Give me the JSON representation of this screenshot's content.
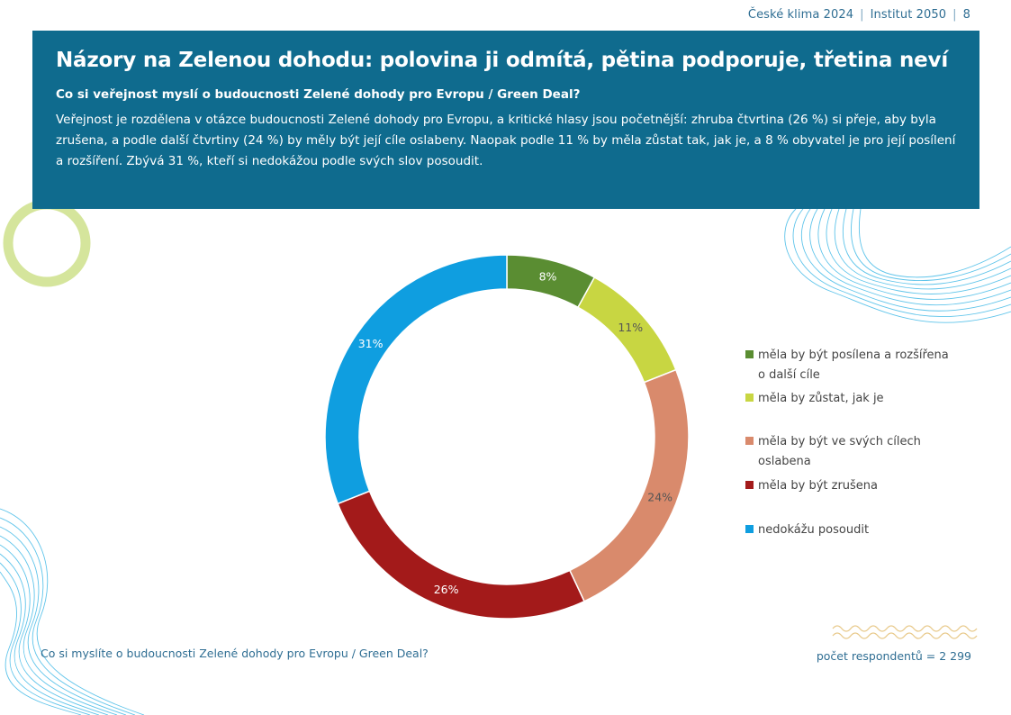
{
  "header": {
    "report": "České klima 2024",
    "publisher": "Institut 2050",
    "page_number": "8"
  },
  "banner": {
    "title": "Názory na Zelenou dohodu: polovina ji odmítá, pětina podporuje, třetina neví",
    "subtitle": "Co si veřejnost myslí o budoucnosti Zelené dohody pro Evropu / Green Deal?",
    "body": "Veřejnost je rozdělena v otázce budoucnosti Zelené dohody pro Evropu, a kritické hlasy jsou početnější:  zhruba čtvrtina (26 %) si přeje, aby byla zrušena, a podle další čtvrtiny (24 %) by měly být její cíle oslabeny. Naopak podle 11 % by měla zůstat tak, jak je, a 8 % obyvatel je pro její posílení a rozšíření. Zbývá 31 %, kteří si nedokážou podle svých slov posoudit."
  },
  "chart_data": {
    "type": "pie",
    "variant": "donut",
    "title": "",
    "slices": [
      {
        "label": "měla by být posílena a rozšířena o další cíle",
        "value": 8,
        "display": "8%",
        "color": "#5a8d32",
        "label_color": "#ffffff"
      },
      {
        "label": "měla by zůstat, jak je",
        "value": 11,
        "display": "11%",
        "color": "#c8d642",
        "label_color": "#555555"
      },
      {
        "label": "měla by být ve svých cílech oslabena",
        "value": 24,
        "display": "24%",
        "color": "#d98a6c",
        "label_color": "#555555"
      },
      {
        "label": "měla by být zrušena",
        "value": 26,
        "display": "26%",
        "color": "#a31a1a",
        "label_color": "#ffffff"
      },
      {
        "label": "nedokážu posoudit",
        "value": 31,
        "display": "31%",
        "color": "#0f9ee0",
        "label_color": "#ffffff"
      }
    ],
    "legend_position": "right"
  },
  "footer": {
    "question": "Co si myslíte o budoucnosti Zelené dohody pro Evropu / Green Deal?",
    "respondents": "počet respondentů = 2 299"
  },
  "colors": {
    "banner": "#0f6b8e",
    "accent_green": "#d3e39a",
    "wave": "#5fc4ea",
    "zigzag": "#e8c98a"
  }
}
